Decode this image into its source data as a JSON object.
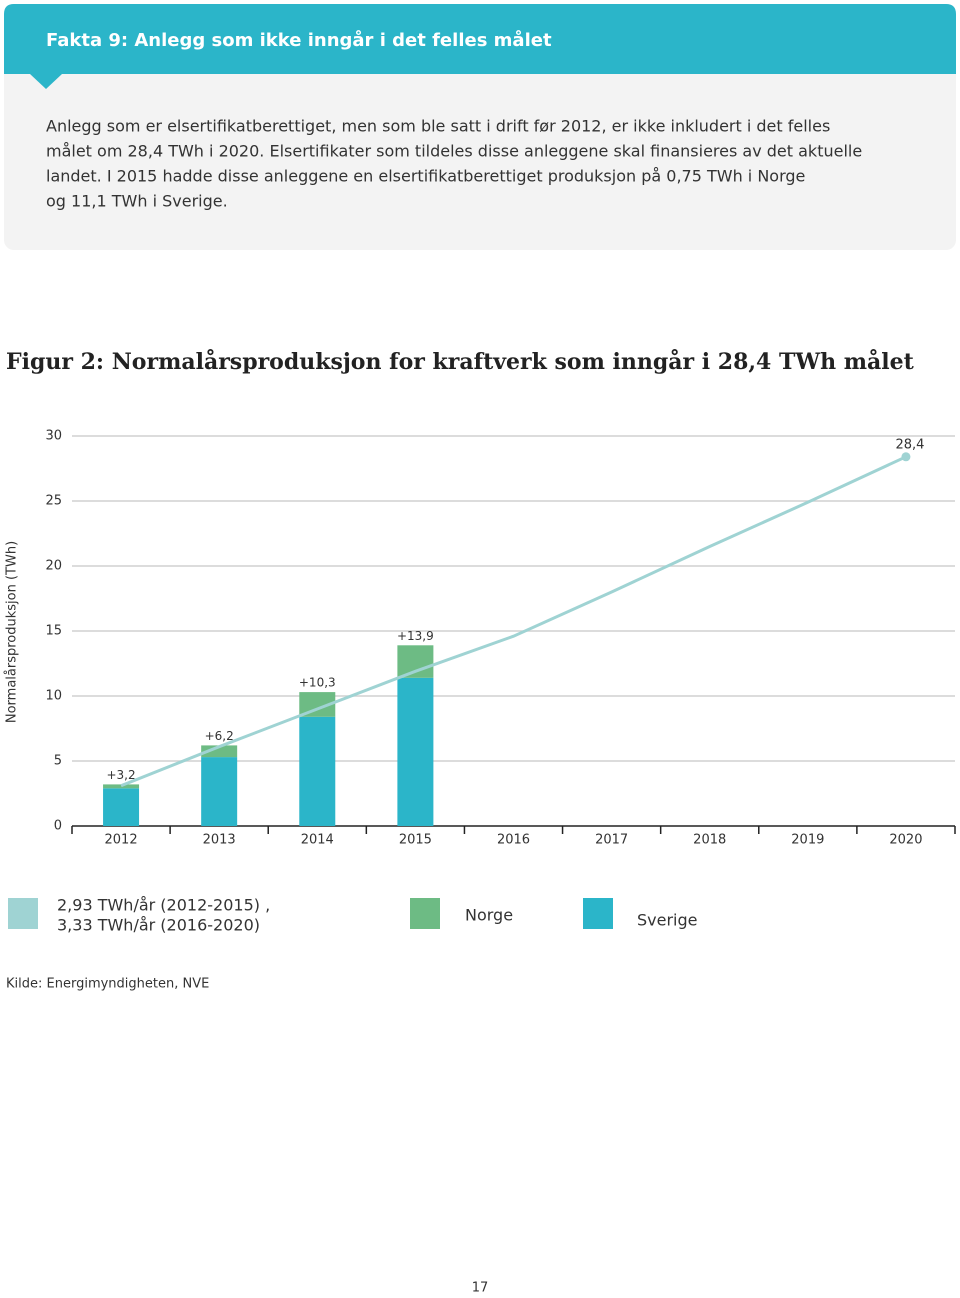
{
  "fact_box": {
    "title": "Fakta 9: Anlegg som ikke inngår i det felles målet",
    "lines": [
      "Anlegg som er elsertifikatberettiget, men som ble satt i drift før 2012, er ikke inkludert i det felles",
      "målet om 28,4 TWh i 2020. Elsertifikater som tildeles disse anleggene skal finansieres av det aktuelle",
      "landet. I 2015 hadde disse anleggene en elsertifikatberettiget produksjon på 0,75 TWh i Norge",
      "og 11,1 TWh i Sverige."
    ]
  },
  "chart_data": {
    "type": "bar",
    "stacked": true,
    "title": "Figur 2: Normalårsproduksjon for kraftverk som inngår i 28,4 TWh målet",
    "y_label": "Normalårsproduksjon (TWh)",
    "categories": [
      "2012",
      "2013",
      "2014",
      "2015",
      "2016",
      "2017",
      "2018",
      "2019",
      "2020"
    ],
    "series": [
      {
        "name": [
          "2,93 TWh/år (2012-2015) ,",
          "3,33 TWh/år (2016-2020)"
        ],
        "type": "line",
        "color": "#9fd3d3",
        "values": [
          3.1,
          6.1,
          9.0,
          11.9,
          14.6,
          18.0,
          21.5,
          24.9,
          28.4
        ],
        "value_labels": [
          null,
          null,
          null,
          null,
          null,
          null,
          null,
          null,
          "28,4"
        ]
      },
      {
        "name": "Norge",
        "color": "#6dbb84",
        "values": [
          0.3,
          0.9,
          1.9,
          2.5,
          null,
          null,
          null,
          null,
          null
        ]
      },
      {
        "name": "Sverige",
        "color": "#2bb5c9",
        "values": [
          2.9,
          5.3,
          8.4,
          11.4,
          null,
          null,
          null,
          null,
          null
        ]
      }
    ],
    "totals": {
      "values": [
        3.2,
        6.2,
        10.3,
        13.9
      ],
      "value_labels": [
        "+3,2",
        "+6,2",
        "+10,3",
        "+13,9"
      ]
    },
    "ylim": [
      0,
      30
    ],
    "yticks": [
      0,
      5,
      10,
      15,
      20,
      25,
      30
    ],
    "grid": true
  },
  "source": "Kilde: Energimyndigheten, NVE",
  "page_number": "17"
}
